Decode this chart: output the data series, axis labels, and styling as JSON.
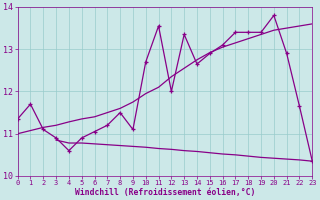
{
  "x_hours": [
    0,
    1,
    2,
    3,
    4,
    5,
    6,
    7,
    8,
    9,
    10,
    11,
    12,
    13,
    14,
    15,
    16,
    17,
    18,
    19,
    20,
    21,
    22,
    23
  ],
  "jagged_y": [
    11.35,
    11.7,
    11.1,
    10.9,
    10.6,
    10.9,
    11.05,
    11.2,
    11.5,
    11.1,
    12.7,
    13.55,
    12.0,
    13.35,
    12.65,
    12.9,
    13.1,
    13.4,
    13.4,
    13.4,
    13.8,
    12.9,
    11.65,
    10.35
  ],
  "trend_x": [
    0,
    2,
    3,
    4,
    5,
    6,
    7,
    8,
    9,
    10,
    11,
    12,
    13,
    14,
    15,
    16,
    17,
    18,
    19,
    20,
    21,
    22,
    23
  ],
  "trend_y": [
    11.0,
    11.15,
    11.2,
    11.28,
    11.35,
    11.4,
    11.5,
    11.6,
    11.75,
    11.95,
    12.1,
    12.35,
    12.55,
    12.75,
    12.92,
    13.05,
    13.15,
    13.25,
    13.35,
    13.45,
    13.5,
    13.55,
    13.6
  ],
  "lower_x": [
    3,
    4,
    5,
    6,
    7,
    8,
    9,
    10,
    11,
    12,
    13,
    14,
    15,
    16,
    17,
    18,
    19,
    20,
    21,
    22,
    23
  ],
  "lower_y": [
    10.85,
    10.78,
    10.78,
    10.76,
    10.74,
    10.72,
    10.7,
    10.68,
    10.65,
    10.63,
    10.6,
    10.58,
    10.55,
    10.52,
    10.5,
    10.47,
    10.44,
    10.42,
    10.4,
    10.38,
    10.35
  ],
  "ylim": [
    10.0,
    14.0
  ],
  "xlim": [
    0,
    23
  ],
  "yticks": [
    10,
    11,
    12,
    13,
    14
  ],
  "xticks": [
    0,
    1,
    2,
    3,
    4,
    5,
    6,
    7,
    8,
    9,
    10,
    11,
    12,
    13,
    14,
    15,
    16,
    17,
    18,
    19,
    20,
    21,
    22,
    23
  ],
  "line_color": "#880088",
  "bg_color": "#cce8e8",
  "grid_color": "#99cccc",
  "xlabel": "Windchill (Refroidissement éolien,°C)",
  "tick_color": "#880088"
}
